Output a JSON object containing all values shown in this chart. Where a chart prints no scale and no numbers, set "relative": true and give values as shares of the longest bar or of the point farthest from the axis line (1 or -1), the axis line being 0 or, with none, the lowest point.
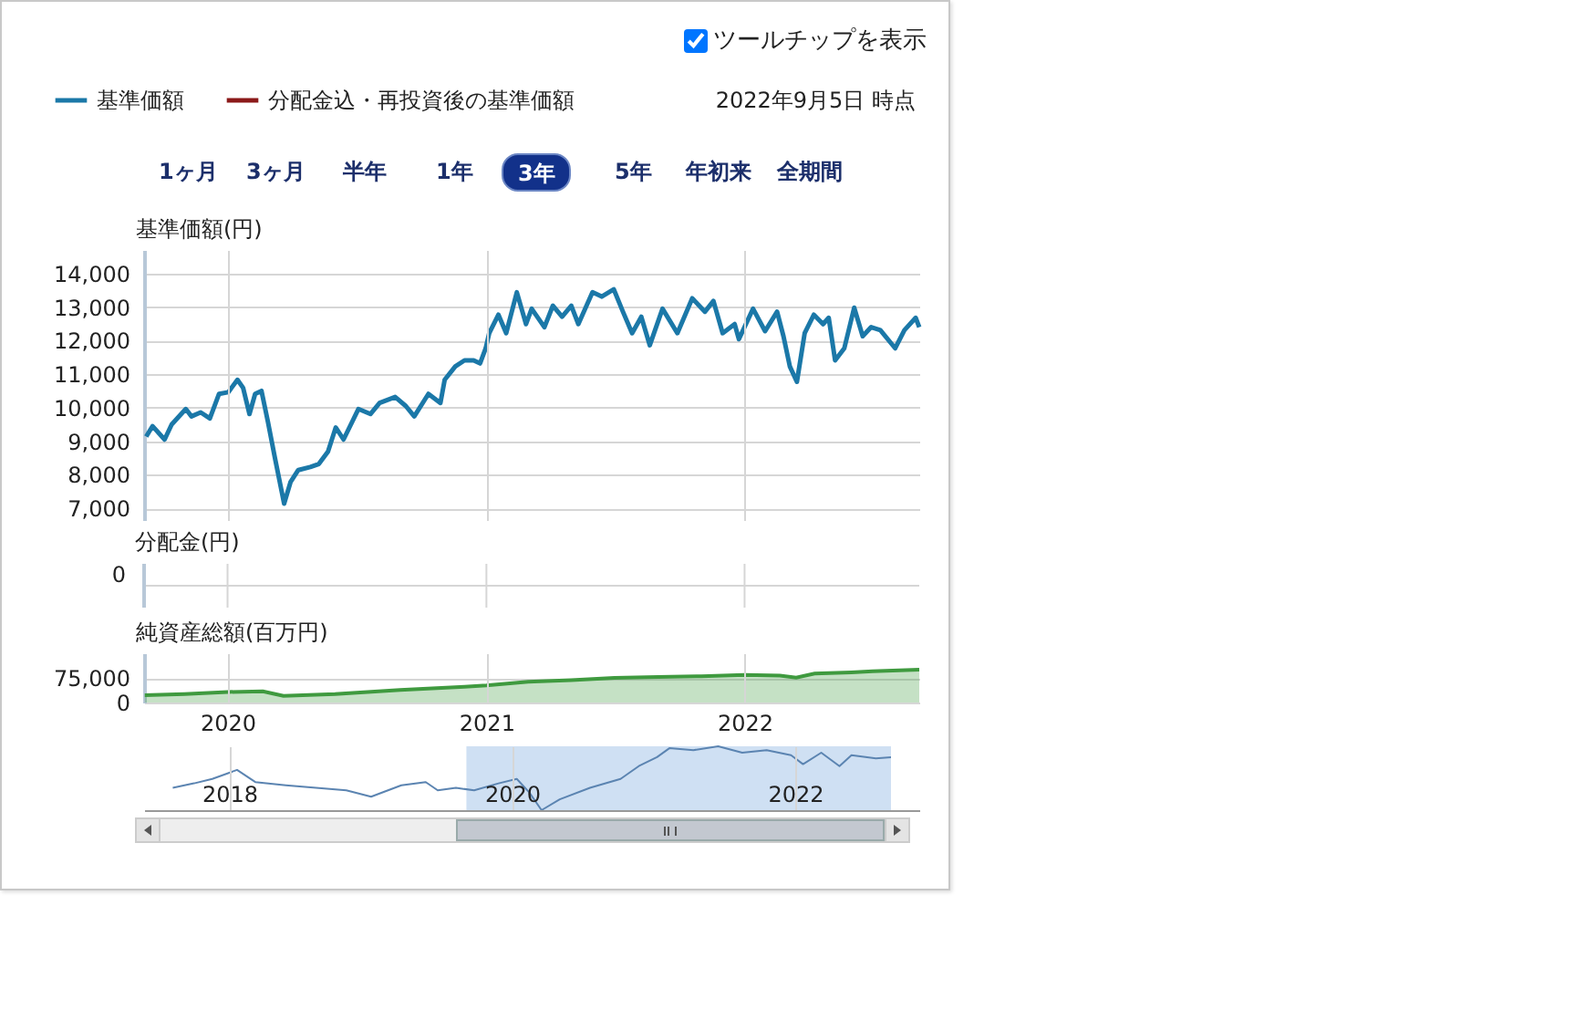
{
  "chart_data": [
    {
      "type": "line",
      "ylabel": "基準価額(円)",
      "legend": "top left",
      "grid": true,
      "tick_labels": "y",
      "annotations": [
        "2022年9月5日 時点",
        "ツールチップを表示",
        "1ヶ月",
        "3ヶ月",
        "半年",
        "1年",
        "3年",
        "5年",
        "年初来",
        "全期間"
      ],
      "xlim": [
        "2019-09-05",
        "2022-09-05"
      ],
      "xticks": [
        "2020",
        "2021",
        "2022"
      ],
      "ylim": [
        6650,
        14700
      ],
      "yticks": [
        {
          "value": 7000,
          "label": "7,000"
        },
        {
          "value": 8000,
          "label": "8,000"
        },
        {
          "value": 9000,
          "label": "9,000"
        },
        {
          "value": 10000,
          "label": "10,000"
        },
        {
          "value": 11000,
          "label": "11,000"
        },
        {
          "value": 12000,
          "label": "12,000"
        },
        {
          "value": 13000,
          "label": "13,000"
        },
        {
          "value": 14000,
          "label": "14,000"
        }
      ],
      "x": [
        "2019-09-08",
        "2019-09-17",
        "2019-10-04",
        "2019-10-14",
        "2019-11-03",
        "2019-11-11",
        "2019-11-24",
        "2019-12-07",
        "2019-12-20",
        "2020-01-02",
        "2020-01-15",
        "2020-01-23",
        "2020-02-01",
        "2020-02-09",
        "2020-02-18",
        "2020-02-27",
        "2020-03-08",
        "2020-03-21",
        "2020-03-30",
        "2020-04-10",
        "2020-04-27",
        "2020-05-09",
        "2020-05-22",
        "2020-06-02",
        "2020-06-13",
        "2020-07-04",
        "2020-07-21",
        "2020-08-03",
        "2020-08-25",
        "2020-09-09",
        "2020-09-21",
        "2020-10-11",
        "2020-10-28",
        "2020-11-03",
        "2020-11-18",
        "2020-12-01",
        "2020-12-14",
        "2020-12-23",
        "2020-12-31",
        "2021-01-05",
        "2021-01-18",
        "2021-01-29",
        "2021-02-13",
        "2021-02-26",
        "2021-03-06",
        "2021-03-24",
        "2021-04-05",
        "2021-04-18",
        "2021-05-01",
        "2021-05-11",
        "2021-05-31",
        "2021-06-13",
        "2021-06-30",
        "2021-07-13",
        "2021-07-26",
        "2021-08-08",
        "2021-08-20",
        "2021-09-07",
        "2021-09-28",
        "2021-10-19",
        "2021-11-06",
        "2021-11-18",
        "2021-12-01",
        "2021-12-18",
        "2021-12-24",
        "2022-01-13",
        "2022-01-30",
        "2022-02-16",
        "2022-02-25",
        "2022-03-06",
        "2022-03-16",
        "2022-03-27",
        "2022-04-09",
        "2022-04-22",
        "2022-04-30",
        "2022-05-09",
        "2022-05-22",
        "2022-06-05",
        "2022-06-17",
        "2022-06-29",
        "2022-07-12",
        "2022-08-02",
        "2022-08-15",
        "2022-08-31",
        "2022-09-05"
      ],
      "series": [
        {
          "name": "基準価額",
          "color": "#1b78a8",
          "values": [
            9140,
            9450,
            9050,
            9500,
            9960,
            9740,
            9860,
            9680,
            10410,
            10460,
            10830,
            10590,
            9810,
            10410,
            10500,
            9590,
            8500,
            7140,
            7780,
            8140,
            8230,
            8320,
            8690,
            9410,
            9050,
            9960,
            9810,
            10140,
            10320,
            10050,
            9740,
            10410,
            10140,
            10830,
            11230,
            11410,
            11410,
            11320,
            11770,
            12220,
            12770,
            12220,
            13440,
            12490,
            12950,
            12400,
            13040,
            12710,
            13040,
            12490,
            13440,
            13310,
            13530,
            12860,
            12220,
            12710,
            11860,
            12950,
            12220,
            13260,
            12860,
            13180,
            12220,
            12490,
            12040,
            12950,
            12280,
            12860,
            12130,
            11230,
            10770,
            12220,
            12770,
            12490,
            12680,
            11410,
            11770,
            12980,
            12130,
            12400,
            12310,
            11770,
            12310,
            12680,
            12400
          ]
        },
        {
          "name": "分配金込・再投資後の基準価額",
          "color": "#8b1a1a",
          "values": [
            null,
            null,
            null,
            null,
            null,
            null,
            null,
            null,
            null,
            null,
            null,
            null,
            null,
            null,
            null,
            null,
            null,
            null,
            null,
            null,
            null,
            null,
            null,
            null,
            null,
            null,
            null,
            null,
            null,
            null,
            null,
            null,
            null,
            null,
            null,
            null,
            null,
            null,
            null,
            null,
            null,
            null,
            null,
            null,
            null,
            null,
            null,
            null,
            null,
            null,
            null,
            null,
            null,
            null,
            null,
            null,
            null,
            null,
            null,
            null,
            null,
            null,
            null,
            null,
            null,
            null,
            null,
            null,
            null,
            null,
            null,
            null,
            null,
            null,
            null,
            null,
            null,
            null,
            null,
            null,
            null,
            null,
            null,
            null,
            null
          ]
        }
      ]
    },
    {
      "type": "other",
      "ylabel": "分配金(円)",
      "annotations": [
        "0"
      ]
    },
    {
      "type": "area",
      "ylabel": "純資産総額(百万円)",
      "grid": true,
      "xlim": [
        "2019-09-05",
        "2022-09-05"
      ],
      "xticks": [
        "2020",
        "2021",
        "2022"
      ],
      "ylim": [
        0,
        150000
      ],
      "yticks": [
        0,
        {
          "value": 75000,
          "label": "75,000"
        }
      ],
      "color": "#3f9a3f",
      "x": [
        "2019-09-06",
        "2019-11-01",
        "2020-01-01",
        "2020-02-20",
        "2020-03-20",
        "2020-06-01",
        "2020-09-01",
        "2020-12-01",
        "2021-01-01",
        "2021-03-01",
        "2021-05-01",
        "2021-07-01",
        "2021-09-01",
        "2021-11-01",
        "2022-01-01",
        "2022-02-20",
        "2022-03-15",
        "2022-04-10",
        "2022-06-01",
        "2022-07-01",
        "2022-09-05"
      ],
      "values": [
        22000,
        26000,
        32000,
        34000,
        20000,
        26000,
        38000,
        48000,
        52000,
        63000,
        68000,
        75000,
        78000,
        80000,
        84000,
        82000,
        76000,
        88000,
        92000,
        95000,
        100000
      ]
    },
    {
      "type": "line",
      "relative": true,
      "grid": "x",
      "tick_labels": "x",
      "xlim": [
        "2017-05-26",
        "2022-11-17"
      ],
      "xticks": [
        "2018",
        "2020",
        "2022"
      ],
      "color": "#5b84b1",
      "bands": [
        {
          "axis": "x",
          "from": "2019-09-05",
          "to": "2022-09-05",
          "color": "#cfe0f3"
        }
      ],
      "x": [
        "2017-08-08",
        "2017-10-02",
        "2017-11-18",
        "2018-01-21",
        "2018-03-09",
        "2018-05-27",
        "2018-08-13",
        "2018-10-30",
        "2019-01-02",
        "2019-03-21",
        "2019-05-23",
        "2019-06-23",
        "2019-08-09",
        "2019-09-25",
        "2019-11-27",
        "2020-01-13",
        "2020-02-14",
        "2020-03-17",
        "2020-05-03",
        "2020-07-20",
        "2020-10-07",
        "2020-11-23",
        "2021-01-09",
        "2021-02-10",
        "2021-04-13",
        "2021-06-16",
        "2021-08-17",
        "2021-10-19",
        "2021-12-21",
        "2022-01-21",
        "2022-03-09",
        "2022-04-25",
        "2022-05-26",
        "2022-07-28",
        "2022-09-05"
      ],
      "values": [
        0.35,
        0.42,
        0.49,
        0.63,
        0.44,
        0.39,
        0.35,
        0.31,
        0.21,
        0.39,
        0.44,
        0.31,
        0.35,
        0.31,
        0.42,
        0.49,
        0.28,
        0,
        0.17,
        0.35,
        0.49,
        0.69,
        0.83,
        0.97,
        0.94,
        1,
        0.9,
        0.94,
        0.86,
        0.72,
        0.9,
        0.69,
        0.86,
        0.81,
        0.83
      ]
    }
  ]
}
